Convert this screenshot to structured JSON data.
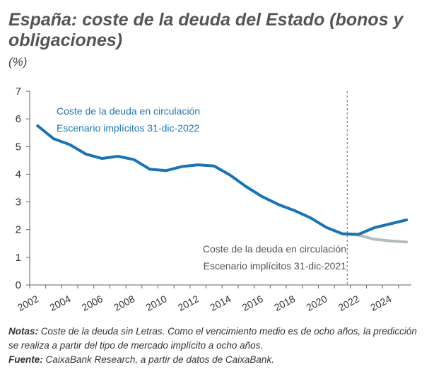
{
  "title": "España: coste de la deuda del Estado (bonos y obligaciones)",
  "unit": "(%)",
  "notes": {
    "notas_label": "Notas:",
    "notas_text": "Coste de la deuda sin Letras. Como el vencimiento medio es de ocho años, la predicción se realiza a partir del tipo de mercado implícito a ocho años.",
    "fuente_label": "Fuente:",
    "fuente_text": "CaixaBank Research, a partir de datos de CaixaBank."
  },
  "chart_data": {
    "type": "line",
    "title": "España: coste de la deuda del Estado (bonos y obligaciones)",
    "ylabel": "(%)",
    "xlabel": "",
    "ylim": [
      0,
      7
    ],
    "xlim": [
      2002,
      2025.8
    ],
    "yticks": [
      0,
      1,
      2,
      3,
      4,
      5,
      6,
      7
    ],
    "xticks": [
      "2002",
      "2004",
      "2006",
      "2008",
      "2010",
      "2012",
      "2014",
      "2016",
      "2018",
      "2020",
      "2022",
      "2024"
    ],
    "vline_x": 2021.8,
    "grid": false,
    "series": [
      {
        "name_line1": "Coste de la deuda en circulación",
        "name_line2": "Escenario implícitos 31-dic-2022",
        "color": "#1a73b5",
        "x": [
          2002.5,
          2003.5,
          2004.5,
          2005.5,
          2006.5,
          2007.5,
          2008.5,
          2009.5,
          2010.5,
          2011.5,
          2012.5,
          2013.5,
          2014.5,
          2015.5,
          2016.5,
          2017.5,
          2018.5,
          2019.5,
          2020.5,
          2021.5,
          2022.5,
          2023.5,
          2024.5,
          2025.5
        ],
        "y": [
          5.75,
          5.28,
          5.07,
          4.73,
          4.57,
          4.65,
          4.53,
          4.18,
          4.13,
          4.28,
          4.34,
          4.3,
          3.97,
          3.55,
          3.19,
          2.91,
          2.69,
          2.43,
          2.08,
          1.85,
          1.83,
          2.07,
          2.21,
          2.35
        ]
      },
      {
        "name_line1": "Coste de la deuda en circulación",
        "name_line2": "Escenario implícitos 31-dic-2021",
        "color": "#b4bcc0",
        "x": [
          2021.5,
          2022.5,
          2023.5,
          2024.5,
          2025.5
        ],
        "y": [
          1.85,
          1.8,
          1.65,
          1.59,
          1.55
        ]
      }
    ]
  }
}
